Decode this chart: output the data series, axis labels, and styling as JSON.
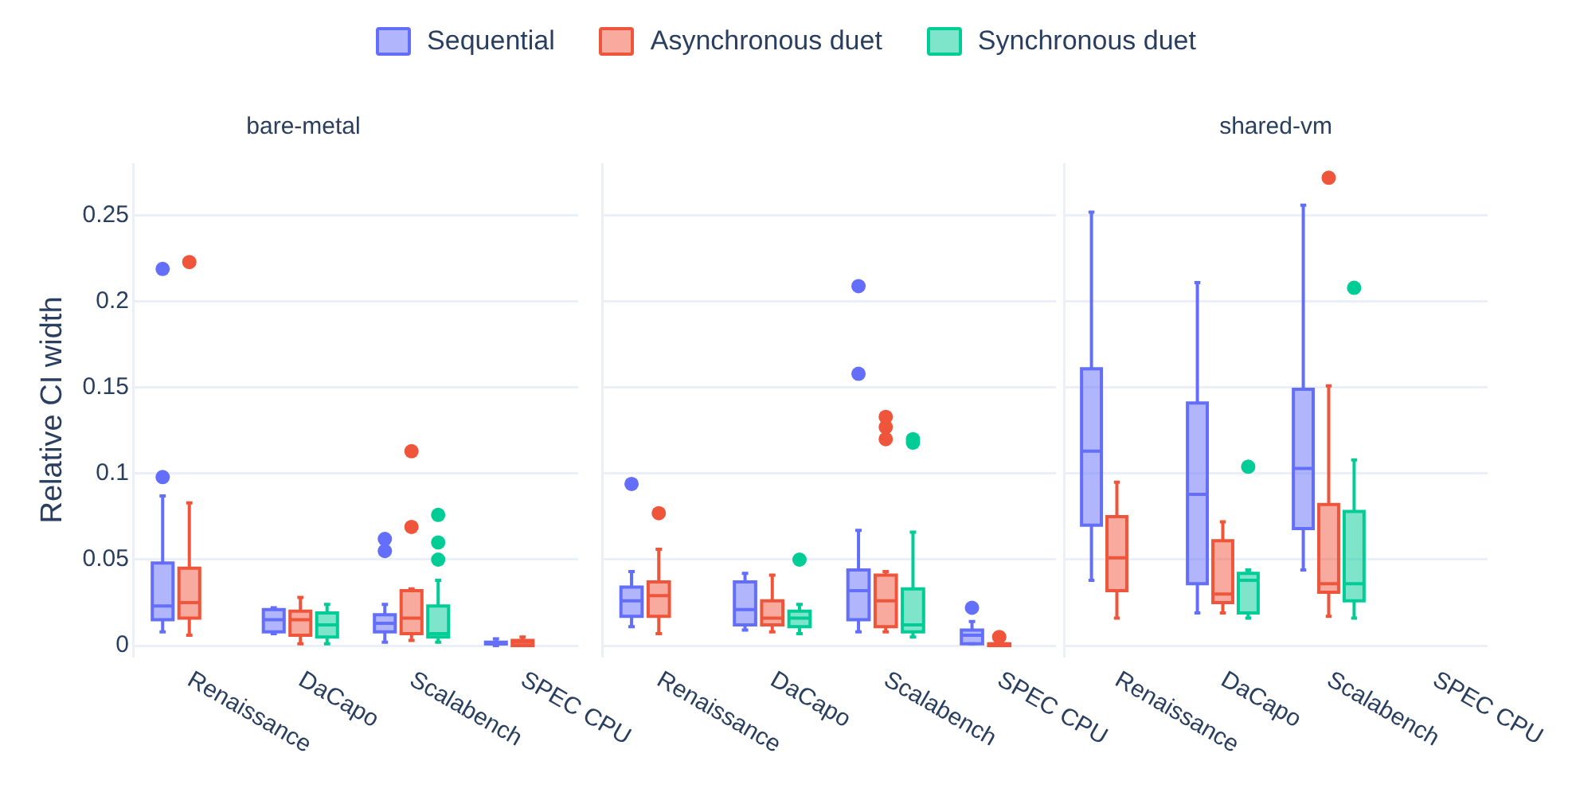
{
  "chart_data": [
    {
      "type": "box",
      "title": "bare-metal",
      "ylabel": "Relative CI width",
      "categories": [
        "Renaissance",
        "DaCapo",
        "Scalabench",
        "SPEC CPU"
      ],
      "ylim": [
        -0.006,
        0.28
      ],
      "yticks": [
        0,
        0.05,
        0.1,
        0.15,
        0.2,
        0.25
      ],
      "grid": "y",
      "legend": "top",
      "series": [
        {
          "name": "Sequential",
          "color": "#636efa",
          "boxes": [
            {
              "low": 0.008,
              "q1": 0.015,
              "median": 0.023,
              "q3": 0.048,
              "high": 0.087,
              "outliers": [
                0.098,
                0.219
              ]
            },
            {
              "low": 0.007,
              "q1": 0.008,
              "median": 0.015,
              "q3": 0.021,
              "high": 0.022
            },
            {
              "low": 0.002,
              "q1": 0.008,
              "median": 0.013,
              "q3": 0.018,
              "high": 0.024,
              "outliers": [
                0.055,
                0.062
              ]
            },
            {
              "low": 0,
              "q1": 0.001,
              "median": 0.001,
              "q3": 0.002,
              "high": 0.004
            }
          ]
        },
        {
          "name": "Asynchronous duet",
          "color": "#ef553b",
          "boxes": [
            {
              "low": 0.006,
              "q1": 0.016,
              "median": 0.025,
              "q3": 0.045,
              "high": 0.083,
              "outliers": [
                0.223
              ]
            },
            {
              "low": 0.001,
              "q1": 0.006,
              "median": 0.015,
              "q3": 0.02,
              "high": 0.028
            },
            {
              "low": 0.003,
              "q1": 0.007,
              "median": 0.016,
              "q3": 0.032,
              "high": 0.033,
              "outliers": [
                0.069,
                0.113
              ]
            },
            {
              "low": 0,
              "q1": 0,
              "median": 0.002,
              "q3": 0.003,
              "high": 0.005
            }
          ]
        },
        {
          "name": "Synchronous duet",
          "color": "#00cc96",
          "boxes": [
            null,
            {
              "low": 0.001,
              "q1": 0.005,
              "median": 0.012,
              "q3": 0.019,
              "high": 0.024
            },
            {
              "low": 0.002,
              "q1": 0.005,
              "median": 0.007,
              "q3": 0.023,
              "high": 0.038,
              "outliers": [
                0.05,
                0.06,
                0.076
              ]
            },
            null
          ]
        }
      ]
    },
    {
      "type": "box",
      "categories": [
        "Renaissance",
        "DaCapo",
        "Scalabench",
        "SPEC CPU"
      ],
      "ylim": [
        -0.006,
        0.28
      ],
      "yticks": [
        0,
        0.05,
        0.1,
        0.15,
        0.2,
        0.25
      ],
      "grid": "y",
      "tick_labels": "x",
      "series": [
        {
          "color": "#636efa",
          "boxes": [
            {
              "low": 0.011,
              "q1": 0.017,
              "median": 0.026,
              "q3": 0.034,
              "high": 0.043,
              "outliers": [
                0.094
              ]
            },
            {
              "low": 0.009,
              "q1": 0.012,
              "median": 0.021,
              "q3": 0.037,
              "high": 0.042
            },
            {
              "low": 0.008,
              "q1": 0.015,
              "median": 0.032,
              "q3": 0.044,
              "high": 0.067,
              "outliers": [
                0.158,
                0.209
              ]
            },
            {
              "low": 0.001,
              "q1": 0.001,
              "median": 0.006,
              "q3": 0.009,
              "high": 0.014,
              "outliers": [
                0.022
              ]
            }
          ]
        },
        {
          "color": "#ef553b",
          "boxes": [
            {
              "low": 0.007,
              "q1": 0.017,
              "median": 0.029,
              "q3": 0.037,
              "high": 0.056,
              "outliers": [
                0.077
              ]
            },
            {
              "low": 0.008,
              "q1": 0.012,
              "median": 0.016,
              "q3": 0.026,
              "high": 0.041
            },
            {
              "low": 0.008,
              "q1": 0.011,
              "median": 0.026,
              "q3": 0.041,
              "high": 0.043,
              "outliers": [
                0.12,
                0.127,
                0.133
              ]
            },
            {
              "low": 0,
              "q1": 0,
              "median": 0.001,
              "q3": 0.001,
              "high": 0.002,
              "outliers": [
                0.005
              ]
            }
          ]
        },
        {
          "color": "#00cc96",
          "boxes": [
            null,
            {
              "low": 0.007,
              "q1": 0.011,
              "median": 0.016,
              "q3": 0.02,
              "high": 0.024,
              "outliers": [
                0.05
              ]
            },
            {
              "low": 0.005,
              "q1": 0.008,
              "median": 0.012,
              "q3": 0.033,
              "high": 0.066,
              "outliers": [
                0.118,
                0.12
              ]
            },
            null
          ]
        }
      ]
    },
    {
      "type": "box",
      "title": "shared-vm",
      "categories": [
        "Renaissance",
        "DaCapo",
        "Scalabench",
        "SPEC CPU"
      ],
      "ylim": [
        -0.006,
        0.28
      ],
      "yticks": [
        0,
        0.05,
        0.1,
        0.15,
        0.2,
        0.25
      ],
      "grid": "y",
      "tick_labels": "x",
      "series": [
        {
          "color": "#636efa",
          "boxes": [
            {
              "low": 0.038,
              "q1": 0.07,
              "median": 0.113,
              "q3": 0.161,
              "high": 0.252
            },
            {
              "low": 0.019,
              "q1": 0.036,
              "median": 0.088,
              "q3": 0.141,
              "high": 0.211
            },
            {
              "low": 0.044,
              "q1": 0.068,
              "median": 0.103,
              "q3": 0.149,
              "high": 0.256
            },
            null
          ]
        },
        {
          "color": "#ef553b",
          "boxes": [
            {
              "low": 0.016,
              "q1": 0.032,
              "median": 0.051,
              "q3": 0.075,
              "high": 0.095
            },
            {
              "low": 0.019,
              "q1": 0.025,
              "median": 0.03,
              "q3": 0.061,
              "high": 0.072
            },
            {
              "low": 0.017,
              "q1": 0.031,
              "median": 0.036,
              "q3": 0.082,
              "high": 0.151,
              "outliers": [
                0.272
              ]
            },
            null
          ]
        },
        {
          "color": "#00cc96",
          "boxes": [
            null,
            {
              "low": 0.016,
              "q1": 0.019,
              "median": 0.038,
              "q3": 0.042,
              "high": 0.044,
              "outliers": [
                0.104
              ]
            },
            {
              "low": 0.016,
              "q1": 0.026,
              "median": 0.036,
              "q3": 0.078,
              "high": 0.108,
              "outliers": [
                0.208
              ]
            },
            null
          ]
        }
      ]
    }
  ]
}
